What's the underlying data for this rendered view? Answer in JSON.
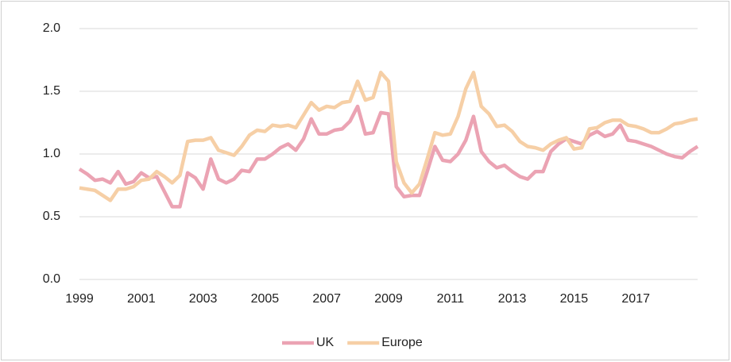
{
  "chart_data": {
    "type": "line",
    "categories": [
      "1999",
      null,
      null,
      null,
      null,
      null,
      null,
      null,
      "2001",
      null,
      null,
      null,
      null,
      null,
      null,
      null,
      "2003",
      null,
      null,
      null,
      null,
      null,
      null,
      null,
      "2005",
      null,
      null,
      null,
      null,
      null,
      null,
      null,
      "2007",
      null,
      null,
      null,
      null,
      null,
      null,
      null,
      "2009",
      null,
      null,
      null,
      null,
      null,
      null,
      null,
      "2011",
      null,
      null,
      null,
      null,
      null,
      null,
      null,
      "2013",
      null,
      null,
      null,
      null,
      null,
      null,
      null,
      "2015",
      null,
      null,
      null,
      null,
      null,
      null,
      null,
      "2017",
      null,
      null,
      null,
      null,
      null,
      null,
      null,
      null
    ],
    "series": [
      {
        "name": "UK",
        "color": "#eba3b3",
        "values": [
          0.88,
          0.84,
          0.79,
          0.8,
          0.77,
          0.86,
          0.76,
          0.78,
          0.85,
          0.81,
          0.82,
          0.7,
          0.58,
          0.58,
          0.85,
          0.81,
          0.72,
          0.96,
          0.8,
          0.77,
          0.8,
          0.87,
          0.86,
          0.96,
          0.96,
          1.0,
          1.05,
          1.08,
          1.03,
          1.12,
          1.28,
          1.16,
          1.16,
          1.19,
          1.2,
          1.26,
          1.38,
          1.16,
          1.17,
          1.33,
          1.32,
          0.74,
          0.66,
          0.67,
          0.67,
          0.86,
          1.06,
          0.95,
          0.94,
          1.0,
          1.11,
          1.3,
          1.02,
          0.94,
          0.89,
          0.91,
          0.86,
          0.82,
          0.8,
          0.86,
          0.86,
          1.02,
          1.08,
          1.12,
          1.1,
          1.08,
          1.15,
          1.18,
          1.14,
          1.16,
          1.23,
          1.11,
          1.1,
          1.08,
          1.06,
          1.03,
          1.0,
          0.98,
          0.97,
          1.02,
          1.06
        ]
      },
      {
        "name": "Europe",
        "color": "#f6cfa6",
        "values": [
          0.73,
          0.72,
          0.71,
          0.67,
          0.63,
          0.72,
          0.72,
          0.74,
          0.79,
          0.8,
          0.86,
          0.82,
          0.77,
          0.83,
          1.1,
          1.11,
          1.11,
          1.13,
          1.03,
          1.01,
          0.99,
          1.06,
          1.15,
          1.19,
          1.18,
          1.23,
          1.22,
          1.23,
          1.21,
          1.31,
          1.41,
          1.35,
          1.38,
          1.37,
          1.41,
          1.42,
          1.58,
          1.43,
          1.45,
          1.65,
          1.58,
          0.94,
          0.77,
          0.69,
          0.76,
          0.96,
          1.17,
          1.15,
          1.16,
          1.3,
          1.52,
          1.65,
          1.38,
          1.32,
          1.22,
          1.23,
          1.18,
          1.1,
          1.06,
          1.05,
          1.03,
          1.08,
          1.11,
          1.13,
          1.04,
          1.05,
          1.2,
          1.21,
          1.25,
          1.27,
          1.27,
          1.23,
          1.22,
          1.2,
          1.17,
          1.17,
          1.2,
          1.24,
          1.25,
          1.27,
          1.28
        ]
      }
    ],
    "ylim": [
      0,
      2
    ],
    "yticks": [
      {
        "value": 0,
        "label": "0.0"
      },
      {
        "value": 0.5,
        "label": "0.5"
      },
      {
        "value": 1,
        "label": "1.0"
      },
      {
        "value": 1.5,
        "label": "1.5"
      },
      {
        "value": 2,
        "label": "2.0"
      }
    ],
    "grid": true,
    "legend": "bottom"
  }
}
